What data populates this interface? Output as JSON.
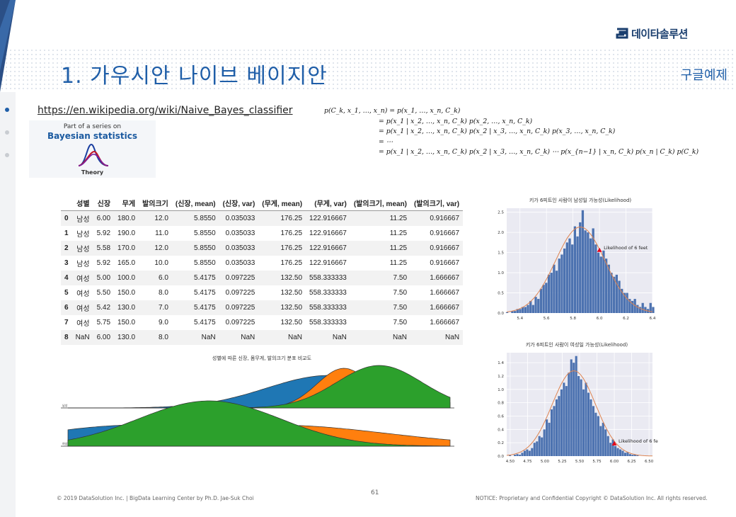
{
  "header": {
    "logo_text": "데이타솔루션",
    "title": "1. 가우시안 나이브 베이지안",
    "subtitle": "구글예제"
  },
  "link": {
    "text": "https://en.wikipedia.org/wiki/Naive_Bayes_classifier"
  },
  "bayes_box": {
    "line1": "Part of a series on",
    "line2": "Bayesian statistics",
    "line3": "Theory"
  },
  "formula": {
    "lines": [
      "p(C_k, x_1, …, x_n) = p(x_1, …, x_n, C_k)",
      "= p(x_1 | x_2, …, x_n, C_k) p(x_2, …, x_n, C_k)",
      "= p(x_1 | x_2, …, x_n, C_k) p(x_2 | x_3, …, x_n, C_k) p(x_3, …, x_n, C_k)",
      "= ⋯",
      "= p(x_1 | x_2, …, x_n, C_k) p(x_2 | x_3, …, x_n, C_k) ⋯ p(x_{n−1} | x_n, C_k) p(x_n | C_k) p(C_k)"
    ]
  },
  "table": {
    "columns": [
      "",
      "성별",
      "신장",
      "무게",
      "발의크기",
      "(신장, mean)",
      "(신장, var)",
      "(무게, mean)",
      "(무게, var)",
      "(발의크기, mean)",
      "(발의크기, var)"
    ],
    "rows": [
      [
        "0",
        "남성",
        "6.00",
        "180.0",
        "12.0",
        "5.8550",
        "0.035033",
        "176.25",
        "122.916667",
        "11.25",
        "0.916667"
      ],
      [
        "1",
        "남성",
        "5.92",
        "190.0",
        "11.0",
        "5.8550",
        "0.035033",
        "176.25",
        "122.916667",
        "11.25",
        "0.916667"
      ],
      [
        "2",
        "남성",
        "5.58",
        "170.0",
        "12.0",
        "5.8550",
        "0.035033",
        "176.25",
        "122.916667",
        "11.25",
        "0.916667"
      ],
      [
        "3",
        "남성",
        "5.92",
        "165.0",
        "10.0",
        "5.8550",
        "0.035033",
        "176.25",
        "122.916667",
        "11.25",
        "0.916667"
      ],
      [
        "4",
        "여성",
        "5.00",
        "100.0",
        "6.0",
        "5.4175",
        "0.097225",
        "132.50",
        "558.333333",
        "7.50",
        "1.666667"
      ],
      [
        "5",
        "여성",
        "5.50",
        "150.0",
        "8.0",
        "5.4175",
        "0.097225",
        "132.50",
        "558.333333",
        "7.50",
        "1.666667"
      ],
      [
        "6",
        "여성",
        "5.42",
        "130.0",
        "7.0",
        "5.4175",
        "0.097225",
        "132.50",
        "558.333333",
        "7.50",
        "1.666667"
      ],
      [
        "7",
        "여성",
        "5.75",
        "150.0",
        "9.0",
        "5.4175",
        "0.097225",
        "132.50",
        "558.333333",
        "7.50",
        "1.666667"
      ],
      [
        "8",
        "NaN",
        "6.00",
        "130.0",
        "8.0",
        "NaN",
        "NaN",
        "NaN",
        "NaN",
        "NaN",
        "NaN"
      ]
    ]
  },
  "chart_data": [
    {
      "type": "bar",
      "title": "키가 6피트인 사람이 남성일 가능성(Likelihood)",
      "xlim": [
        5.3,
        6.4
      ],
      "ylim": [
        0,
        2.6
      ],
      "xticks": [
        "5.4",
        "5.6",
        "5.8",
        "6.0",
        "6.2",
        "6.4"
      ],
      "yticks": [
        "0.0",
        "0.5",
        "1.0",
        "1.5",
        "2.0",
        "2.5"
      ],
      "mean": 5.855,
      "std": 0.187,
      "values": [
        0.02,
        0.0,
        0.05,
        0.05,
        0.1,
        0.1,
        0.15,
        0.15,
        0.2,
        0.3,
        0.2,
        0.4,
        0.35,
        0.6,
        0.7,
        0.75,
        0.95,
        1.0,
        1.2,
        1.05,
        1.35,
        1.45,
        1.6,
        1.75,
        1.85,
        1.7,
        2.15,
        1.9,
        2.25,
        2.55,
        2.05,
        2.0,
        1.85,
        2.1,
        1.7,
        1.5,
        1.4,
        1.55,
        1.35,
        1.2,
        1.0,
        0.9,
        0.95,
        0.8,
        0.6,
        0.5,
        0.5,
        0.35,
        0.3,
        0.35,
        0.2,
        0.15,
        0.25,
        0.15,
        0.1,
        0.25,
        0.15
      ],
      "marker": {
        "x": 6.0,
        "y": 1.55,
        "label": "Likelihood of 6 feet"
      },
      "color": "#4c72b0",
      "curve_color": "#dd8452"
    },
    {
      "type": "bar",
      "title": "키가 6피트인 사람이 여성일 가능성(Likelihood)",
      "xlim": [
        4.45,
        6.55
      ],
      "ylim": [
        0,
        1.55
      ],
      "xticks": [
        "4.50",
        "4.75",
        "5.00",
        "5.25",
        "5.50",
        "5.75",
        "6.00",
        "6.25",
        "6.50"
      ],
      "yticks": [
        "0.0",
        "0.2",
        "0.4",
        "0.6",
        "0.8",
        "1.0",
        "1.2",
        "1.4"
      ],
      "mean": 5.4175,
      "std": 0.312,
      "values": [
        0.01,
        0.0,
        0.02,
        0.03,
        0.02,
        0.05,
        0.08,
        0.1,
        0.08,
        0.12,
        0.2,
        0.22,
        0.3,
        0.28,
        0.4,
        0.55,
        0.5,
        0.7,
        0.75,
        0.85,
        0.9,
        1.0,
        1.1,
        1.05,
        1.25,
        1.45,
        1.4,
        1.5,
        1.2,
        1.15,
        1.0,
        1.1,
        0.95,
        0.85,
        0.75,
        0.65,
        0.6,
        0.45,
        0.5,
        0.4,
        0.3,
        0.2,
        0.25,
        0.15,
        0.12,
        0.1,
        0.08,
        0.05,
        0.06,
        0.03,
        0.02,
        0.02,
        0.01
      ],
      "marker": {
        "x": 6.0,
        "y": 0.18,
        "label": "Likelihood of 6 feet"
      },
      "color": "#4c72b0",
      "curve_color": "#dd8452"
    },
    {
      "type": "area",
      "title": "성별에 따른 신장, 몸무게, 발의크기 분포 비교도",
      "rows": [
        "남성",
        "여성"
      ],
      "colors": {
        "s1": "#1f77b4",
        "s2": "#ff7f0e",
        "s3": "#2ca02c"
      }
    }
  ],
  "footer": {
    "left": "© 2019 DataSolution Inc. | BigData Learning Center by Ph.D. Jae-Suk Choi",
    "page": "61",
    "right": "NOTICE: Proprietary and Confidential Copyright © DataSolution Inc. All rights reserved."
  }
}
